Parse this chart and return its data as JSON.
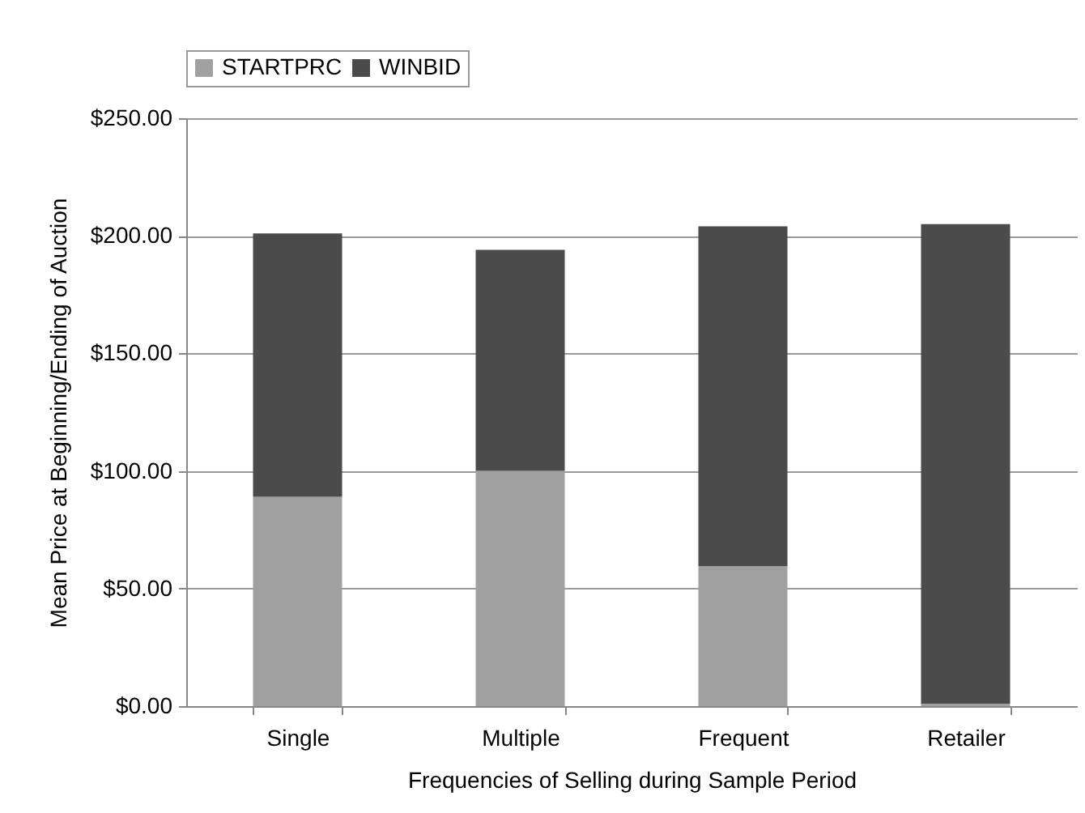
{
  "chart_data": {
    "type": "bar",
    "stacked": true,
    "xlabel": "Frequencies of Selling during Sample Period",
    "ylabel": "Mean Price at Beginning/Ending of Auction",
    "categories": [
      "Single",
      "Multiple",
      "Frequent",
      "Retailer"
    ],
    "series": [
      {
        "name": "STARTPRC",
        "color": "#a0a0a0",
        "values": [
          89,
          100,
          59.5,
          1
        ]
      },
      {
        "name": "WINBID",
        "color": "#4b4b4b",
        "values": [
          112,
          94,
          144.5,
          204
        ]
      }
    ],
    "ylim": [
      0,
      250
    ],
    "yticks": [
      {
        "value": 0,
        "label": "$0.00"
      },
      {
        "value": 50,
        "label": "$50.00"
      },
      {
        "value": 100,
        "label": "$100.00"
      },
      {
        "value": 150,
        "label": "$150.00"
      },
      {
        "value": 200,
        "label": "$200.00"
      },
      {
        "value": 250,
        "label": "$250.00"
      }
    ],
    "grid": "y",
    "legend": "top"
  }
}
